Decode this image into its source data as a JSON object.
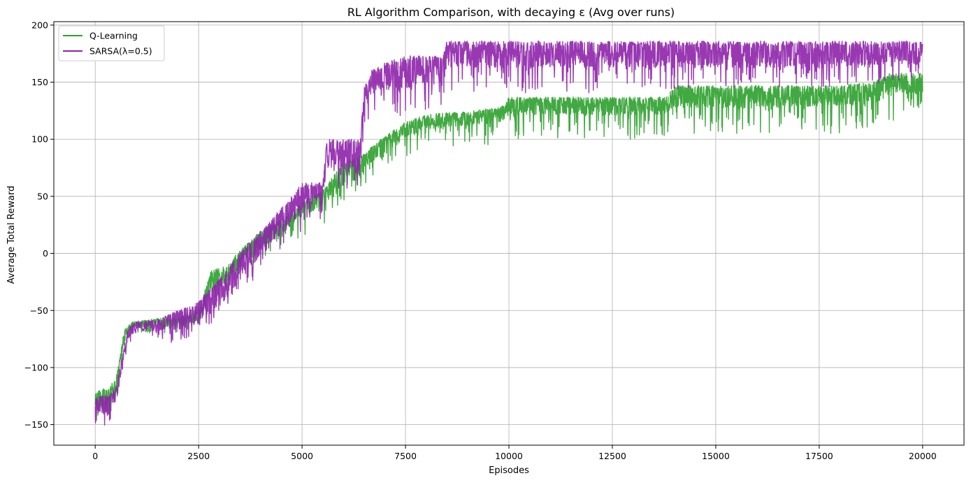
{
  "chart_data": {
    "type": "line",
    "title": "RL Algorithm Comparison, with decaying ε (Avg over runs)",
    "xlabel": "Episodes",
    "ylabel": "Average Total Reward",
    "xlim": [
      -1000,
      21000
    ],
    "ylim": [
      -168,
      203
    ],
    "xticks": [
      0,
      2500,
      5000,
      7500,
      10000,
      12500,
      15000,
      17500,
      20000
    ],
    "yticks": [
      -150,
      -100,
      -50,
      0,
      50,
      100,
      150,
      200
    ],
    "xtick_labels": [
      "0",
      "2500",
      "5000",
      "7500",
      "10000",
      "12500",
      "15000",
      "17500",
      "20000"
    ],
    "ytick_labels": [
      "−150",
      "−100",
      "−50",
      "0",
      "50",
      "100",
      "150",
      "200"
    ],
    "grid": true,
    "legend_position": "top-left",
    "series": [
      {
        "name": "Q-Learning",
        "color": "#2ca02c",
        "points": [
          {
            "x": 0,
            "center": -133,
            "low": -150,
            "high": -120
          },
          {
            "x": 300,
            "center": -132,
            "low": -148,
            "high": -118
          },
          {
            "x": 500,
            "center": -122,
            "low": -135,
            "high": -110
          },
          {
            "x": 600,
            "center": -100,
            "low": -110,
            "high": -90
          },
          {
            "x": 700,
            "center": -75,
            "low": -85,
            "high": -66
          },
          {
            "x": 900,
            "center": -64,
            "low": -70,
            "high": -60
          },
          {
            "x": 1500,
            "center": -62,
            "low": -70,
            "high": -57
          },
          {
            "x": 2000,
            "center": -63,
            "low": -72,
            "high": -56
          },
          {
            "x": 2500,
            "center": -55,
            "low": -62,
            "high": -48
          },
          {
            "x": 2800,
            "center": -30,
            "low": -42,
            "high": -15
          },
          {
            "x": 3200,
            "center": -22,
            "low": -32,
            "high": -10
          },
          {
            "x": 3500,
            "center": -5,
            "low": -18,
            "high": 3
          },
          {
            "x": 4000,
            "center": 8,
            "low": -5,
            "high": 20
          },
          {
            "x": 4500,
            "center": 20,
            "low": 5,
            "high": 30
          },
          {
            "x": 5000,
            "center": 35,
            "low": 15,
            "high": 45
          },
          {
            "x": 5500,
            "center": 45,
            "low": 25,
            "high": 55
          },
          {
            "x": 6000,
            "center": 62,
            "low": 45,
            "high": 80
          },
          {
            "x": 6500,
            "center": 75,
            "low": 58,
            "high": 88
          },
          {
            "x": 7000,
            "center": 95,
            "low": 78,
            "high": 103
          },
          {
            "x": 7500,
            "center": 105,
            "low": 85,
            "high": 115
          },
          {
            "x": 8000,
            "center": 112,
            "low": 90,
            "high": 122
          },
          {
            "x": 9000,
            "center": 115,
            "low": 92,
            "high": 125
          },
          {
            "x": 9800,
            "center": 118,
            "low": 95,
            "high": 128
          },
          {
            "x": 10000,
            "center": 125,
            "low": 100,
            "high": 137
          },
          {
            "x": 12000,
            "center": 125,
            "low": 100,
            "high": 137
          },
          {
            "x": 13800,
            "center": 125,
            "low": 100,
            "high": 137
          },
          {
            "x": 14000,
            "center": 132,
            "low": 105,
            "high": 147
          },
          {
            "x": 16000,
            "center": 132,
            "low": 105,
            "high": 147
          },
          {
            "x": 17800,
            "center": 133,
            "low": 105,
            "high": 147
          },
          {
            "x": 18800,
            "center": 135,
            "low": 108,
            "high": 150
          },
          {
            "x": 19200,
            "center": 142,
            "low": 115,
            "high": 158
          },
          {
            "x": 20000,
            "center": 145,
            "low": 128,
            "high": 158
          }
        ]
      },
      {
        "name": "SARSA(λ=0.5)",
        "color": "#8e24aa",
        "points": [
          {
            "x": 0,
            "center": -136,
            "low": -152,
            "high": -125
          },
          {
            "x": 300,
            "center": -138,
            "low": -150,
            "high": -124
          },
          {
            "x": 500,
            "center": -128,
            "low": -140,
            "high": -118
          },
          {
            "x": 650,
            "center": -100,
            "low": -112,
            "high": -90
          },
          {
            "x": 800,
            "center": -72,
            "low": -80,
            "high": -64
          },
          {
            "x": 1000,
            "center": -66,
            "low": -73,
            "high": -60
          },
          {
            "x": 1500,
            "center": -66,
            "low": -74,
            "high": -58
          },
          {
            "x": 2000,
            "center": -64,
            "low": -82,
            "high": -50
          },
          {
            "x": 2500,
            "center": -55,
            "low": -68,
            "high": -42
          },
          {
            "x": 3000,
            "center": -42,
            "low": -62,
            "high": -22
          },
          {
            "x": 3500,
            "center": -18,
            "low": -38,
            "high": 0
          },
          {
            "x": 4000,
            "center": 2,
            "low": -15,
            "high": 20
          },
          {
            "x": 4500,
            "center": 22,
            "low": 0,
            "high": 40
          },
          {
            "x": 5000,
            "center": 40,
            "low": 20,
            "high": 62
          },
          {
            "x": 5500,
            "center": 52,
            "low": 30,
            "high": 62
          },
          {
            "x": 5600,
            "center": 80,
            "low": 55,
            "high": 100
          },
          {
            "x": 6400,
            "center": 82,
            "low": 58,
            "high": 100
          },
          {
            "x": 6500,
            "center": 130,
            "low": 100,
            "high": 145
          },
          {
            "x": 6700,
            "center": 145,
            "low": 115,
            "high": 162
          },
          {
            "x": 7400,
            "center": 150,
            "low": 120,
            "high": 173
          },
          {
            "x": 8400,
            "center": 158,
            "low": 130,
            "high": 173
          },
          {
            "x": 8500,
            "center": 168,
            "low": 140,
            "high": 186
          },
          {
            "x": 10000,
            "center": 168,
            "low": 140,
            "high": 186
          },
          {
            "x": 12500,
            "center": 168,
            "low": 140,
            "high": 186
          },
          {
            "x": 15000,
            "center": 168,
            "low": 145,
            "high": 186
          },
          {
            "x": 17500,
            "center": 168,
            "low": 145,
            "high": 186
          },
          {
            "x": 19000,
            "center": 170,
            "low": 148,
            "high": 186
          },
          {
            "x": 20000,
            "center": 170,
            "low": 150,
            "high": 186
          }
        ]
      }
    ]
  }
}
